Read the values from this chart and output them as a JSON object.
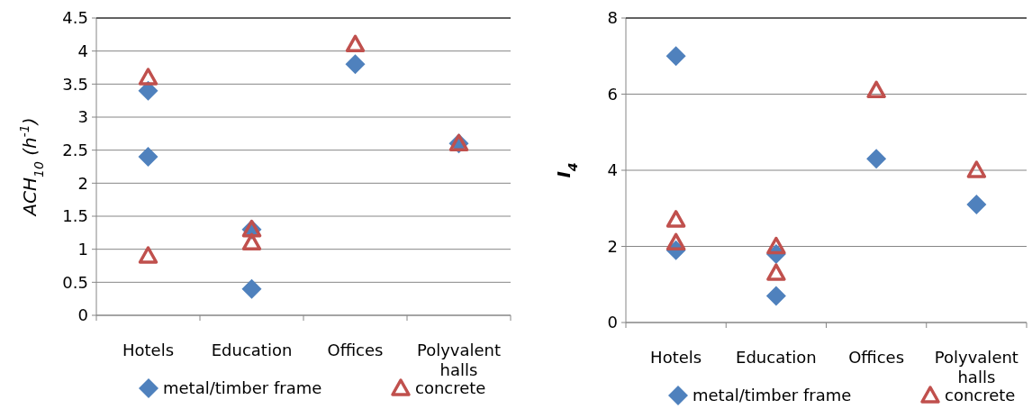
{
  "chart_data": [
    {
      "type": "scatter",
      "ylabel": "ACH$_{10}$ (h$^{-1}$)",
      "categories": [
        "Hotels",
        "Education",
        "Offices",
        "Polyvalent halls"
      ],
      "ylim": [
        0,
        4.5
      ],
      "yticks": [
        0,
        0.5,
        1,
        1.5,
        2,
        2.5,
        3,
        3.5,
        4,
        4.5
      ],
      "grid": "y",
      "legend": "bottom",
      "series": [
        {
          "name": "metal/timber frame",
          "color": "#4f81bd",
          "marker": "diamond",
          "x": [
            "Hotels",
            "Hotels",
            "Education",
            "Education",
            "Offices",
            "Polyvalent halls"
          ],
          "values": [
            3.4,
            2.4,
            1.3,
            0.4,
            3.8,
            2.6
          ]
        },
        {
          "name": "concrete",
          "color": "#c0504d",
          "marker": "triangle",
          "x": [
            "Hotels",
            "Hotels",
            "Education",
            "Education",
            "Offices",
            "Polyvalent halls"
          ],
          "values": [
            3.6,
            0.9,
            1.3,
            1.1,
            4.1,
            2.6
          ]
        }
      ]
    },
    {
      "type": "scatter",
      "ylabel": "I$_{4}$",
      "categories": [
        "Hotels",
        "Education",
        "Offices",
        "Polyvalent halls"
      ],
      "ylim": [
        0,
        8
      ],
      "yticks": [
        0,
        2,
        4,
        6,
        8
      ],
      "grid": "y",
      "legend": "bottom",
      "series": [
        {
          "name": "metal/timber frame",
          "color": "#4f81bd",
          "marker": "diamond",
          "x": [
            "Hotels",
            "Hotels",
            "Education",
            "Education",
            "Offices",
            "Polyvalent halls"
          ],
          "values": [
            7.0,
            1.9,
            1.8,
            0.7,
            4.3,
            3.1
          ]
        },
        {
          "name": "concrete",
          "color": "#c0504d",
          "marker": "triangle",
          "x": [
            "Hotels",
            "Hotels",
            "Education",
            "Education",
            "Offices",
            "Polyvalent halls"
          ],
          "values": [
            2.7,
            2.1,
            2.0,
            1.3,
            6.1,
            4.0
          ]
        }
      ]
    }
  ]
}
